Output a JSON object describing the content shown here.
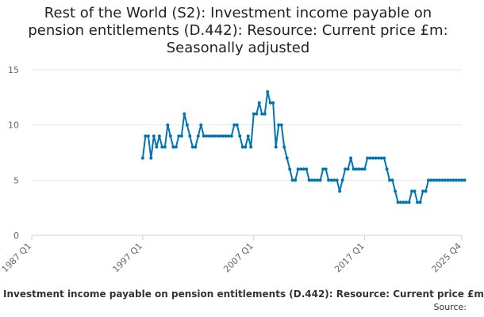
{
  "chart_data": {
    "type": "line",
    "title": "Rest of the World (S2): Investment income payable on pension entitlements (D.442): Resource: Current price £m: Seasonally adjusted",
    "title_lines": [
      "Rest of the World (S2): Investment income payable on",
      "pension entitlements (D.442): Resource: Current price £m:",
      "Seasonally adjusted"
    ],
    "xlabel": "",
    "ylabel": "",
    "x_tick_labels": [
      "1987 Q1",
      "1997 Q1",
      "2007 Q1",
      "2017 Q1",
      "2025 Q4"
    ],
    "y_ticks": [
      0,
      5,
      10,
      15
    ],
    "ylim": [
      0,
      15
    ],
    "xlim": [
      "1987 Q1",
      "2025 Q4"
    ],
    "grid": true,
    "color": "#0075b4",
    "series": [
      {
        "name": "Investment income payable on pension entitlements (D.442): Resource: Current price £m",
        "start": "1997 Q1",
        "values": [
          7,
          9,
          9,
          7,
          9,
          8,
          9,
          8,
          8,
          10,
          9,
          8,
          8,
          9,
          9,
          11,
          10,
          9,
          8,
          8,
          9,
          10,
          9,
          9,
          9,
          9,
          9,
          9,
          9,
          9,
          9,
          9,
          9,
          10,
          10,
          9,
          8,
          8,
          9,
          8,
          11,
          11,
          12,
          11,
          11,
          13,
          12,
          12,
          8,
          10,
          10,
          8,
          7,
          6,
          5,
          5,
          6,
          6,
          6,
          6,
          5,
          5,
          5,
          5,
          5,
          6,
          6,
          5,
          5,
          5,
          5,
          4,
          5,
          6,
          6,
          7,
          6,
          6,
          6,
          6,
          6,
          7,
          7,
          7,
          7,
          7,
          7,
          7,
          6,
          5,
          5,
          4,
          3,
          3,
          3,
          3,
          3,
          4,
          4,
          3,
          3,
          4,
          4,
          5,
          5,
          5,
          5,
          5,
          5,
          5,
          5,
          5,
          5,
          5,
          5,
          5,
          5
        ]
      }
    ]
  },
  "footer": {
    "legend_label": "Investment income payable on pension entitlements (D.442): Resource: Current price £m",
    "source_label": "Source:"
  }
}
